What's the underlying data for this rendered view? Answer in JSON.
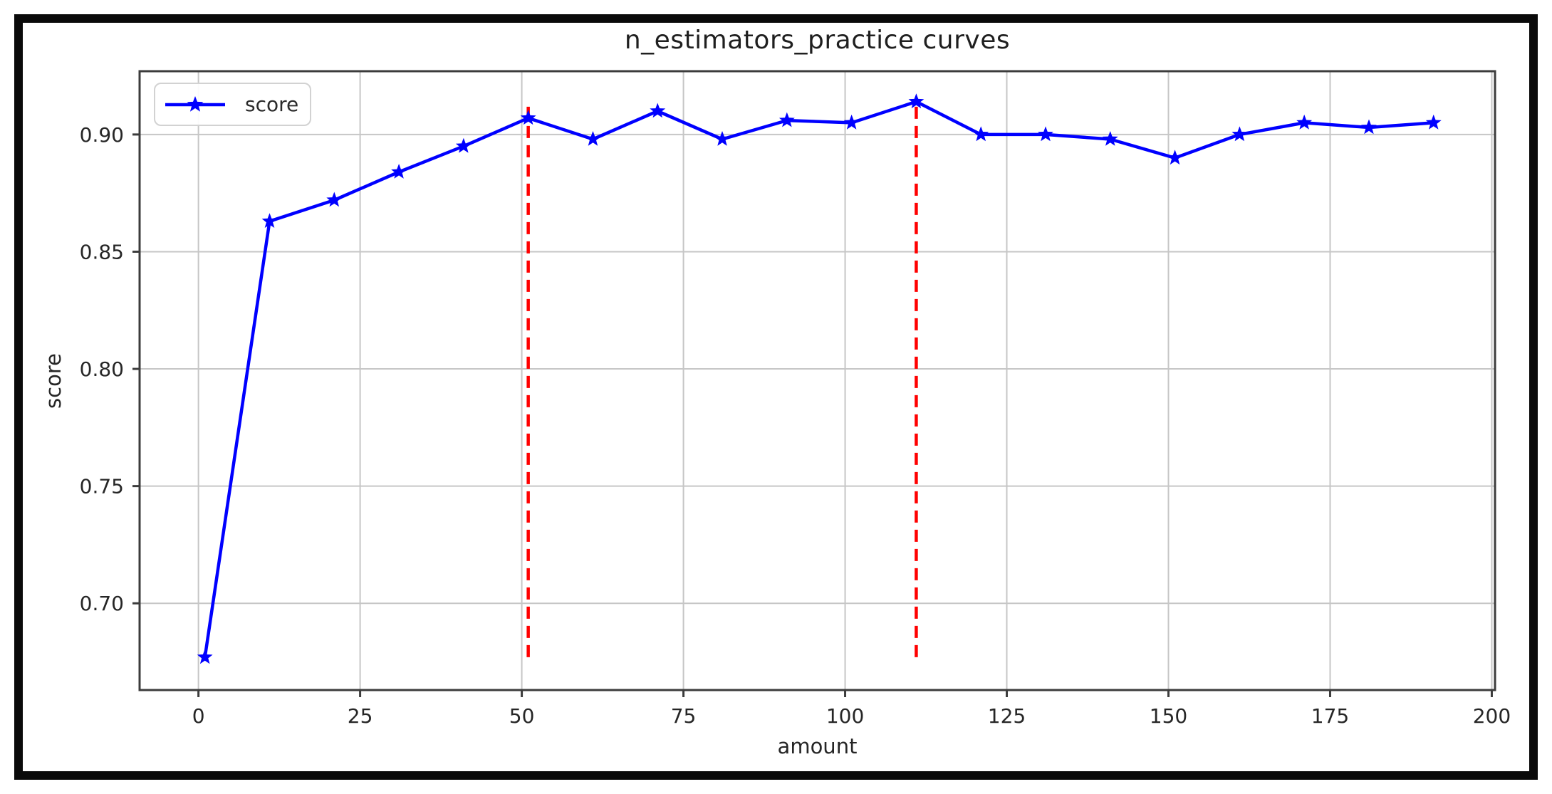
{
  "figure": {
    "background": "#ffffff",
    "border_color": "#0a0a0a"
  },
  "chart_data": {
    "type": "line",
    "title": "n_estimators_practice curves",
    "xlabel": "amount",
    "ylabel": "score",
    "series": [
      {
        "name": "score",
        "color": "#0000ff",
        "marker": "star",
        "x": [
          1,
          11,
          21,
          31,
          41,
          51,
          61,
          71,
          81,
          91,
          101,
          111,
          121,
          131,
          141,
          151,
          161,
          171,
          181,
          191
        ],
        "y": [
          0.677,
          0.863,
          0.872,
          0.884,
          0.895,
          0.907,
          0.898,
          0.91,
          0.898,
          0.906,
          0.905,
          0.914,
          0.9,
          0.9,
          0.898,
          0.89,
          0.9,
          0.905,
          0.903,
          0.905
        ]
      }
    ],
    "vlines": [
      {
        "x": 51,
        "y_from": 0.677,
        "y_to": 0.914,
        "color": "#ff0000",
        "style": "dashed"
      },
      {
        "x": 111,
        "y_from": 0.677,
        "y_to": 0.914,
        "color": "#ff0000",
        "style": "dashed"
      }
    ],
    "xticks": [
      0,
      25,
      50,
      75,
      100,
      125,
      150,
      175,
      200
    ],
    "xtick_labels": [
      "0",
      "25",
      "50",
      "75",
      "100",
      "125",
      "150",
      "175",
      "200"
    ],
    "yticks": [
      0.7,
      0.75,
      0.8,
      0.85,
      0.9
    ],
    "ytick_labels": [
      "0.70",
      "0.75",
      "0.80",
      "0.85",
      "0.90"
    ],
    "xlim": [
      -9.1,
      200.5
    ],
    "ylim": [
      0.663,
      0.927
    ],
    "grid": true,
    "grid_color": "#c6c6c6",
    "spine_color": "#3c3c3c",
    "legend": {
      "position": "upper left",
      "entries": [
        {
          "label": "score",
          "color": "#0000ff",
          "marker": "star"
        }
      ]
    }
  }
}
